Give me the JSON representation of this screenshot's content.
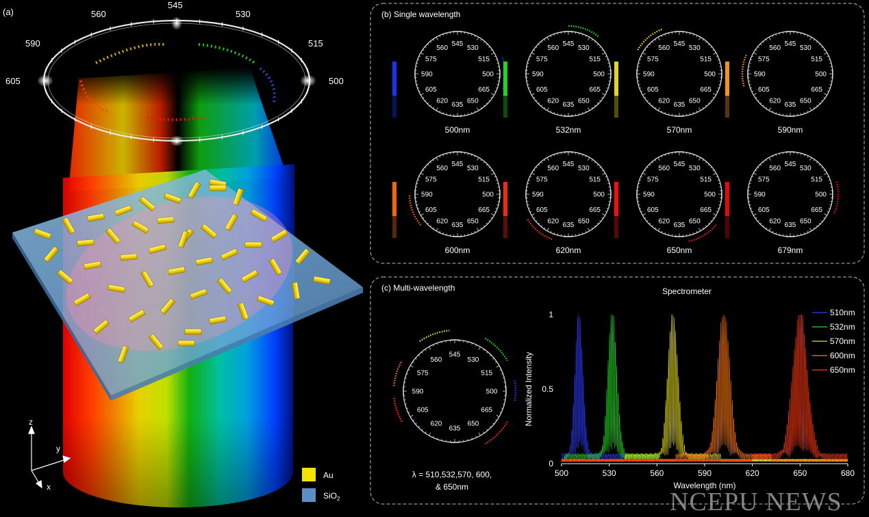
{
  "panel_a": {
    "label": "(a)",
    "ring_labels": [
      "545",
      "530",
      "515",
      "500",
      "560",
      "590",
      "605"
    ],
    "axes": {
      "z": "z",
      "y": "y",
      "x": "x"
    },
    "legend": [
      {
        "name": "Au",
        "color": "#f2e200"
      },
      {
        "name": "SiO",
        "sub": "2",
        "color": "#5d8fc7"
      }
    ]
  },
  "panel_b": {
    "title": "(b) Single wavelength",
    "dial_labels": [
      "545",
      "530",
      "515",
      "500",
      "665",
      "650",
      "635",
      "620",
      "605",
      "590",
      "575",
      "560"
    ],
    "items": [
      {
        "label": "500nm",
        "color": "#1b35ff"
      },
      {
        "label": "532nm",
        "color": "#20e020"
      },
      {
        "label": "570nm",
        "color": "#f0e020"
      },
      {
        "label": "590nm",
        "color": "#ff9a1a"
      },
      {
        "label": "600nm",
        "color": "#ff6a10"
      },
      {
        "label": "620nm",
        "color": "#ff2a10"
      },
      {
        "label": "650nm",
        "color": "#ff1010"
      },
      {
        "label": "679nm",
        "color": "#ee0a0a"
      }
    ]
  },
  "panel_c": {
    "title": "(c) Multi-wavelength",
    "caption_line1": "λ = 510,532,570, 600,",
    "caption_line2": "& 650nm"
  },
  "chart_data": {
    "type": "line",
    "title": "Spectrometer",
    "xlabel": "Wavelength (nm)",
    "ylabel": "Normalized Intensity",
    "xlim": [
      500,
      680
    ],
    "ylim": [
      0,
      1
    ],
    "xticks": [
      500,
      530,
      560,
      590,
      620,
      650,
      680
    ],
    "yticks": [
      {
        "v": 0,
        "t": "0"
      },
      {
        "v": 0.5,
        "t": "0.5"
      },
      {
        "v": 1,
        "t": "1"
      }
    ],
    "legend_position": "top-right",
    "series": [
      {
        "name": "510nm",
        "color": "#2c3cff",
        "peak": 511,
        "width": 3.5
      },
      {
        "name": "532nm",
        "color": "#22dd22",
        "peak": 532,
        "width": 4
      },
      {
        "name": "570nm",
        "color": "#e8e020",
        "peak": 570,
        "width": 4.5
      },
      {
        "name": "600nm",
        "color": "#ff7a10",
        "peak": 602,
        "width": 5.5
      },
      {
        "name": "650nm",
        "color": "#ff3a10",
        "peak": 650,
        "width": 6.5
      }
    ]
  },
  "watermark": "NCEPU NEWS"
}
